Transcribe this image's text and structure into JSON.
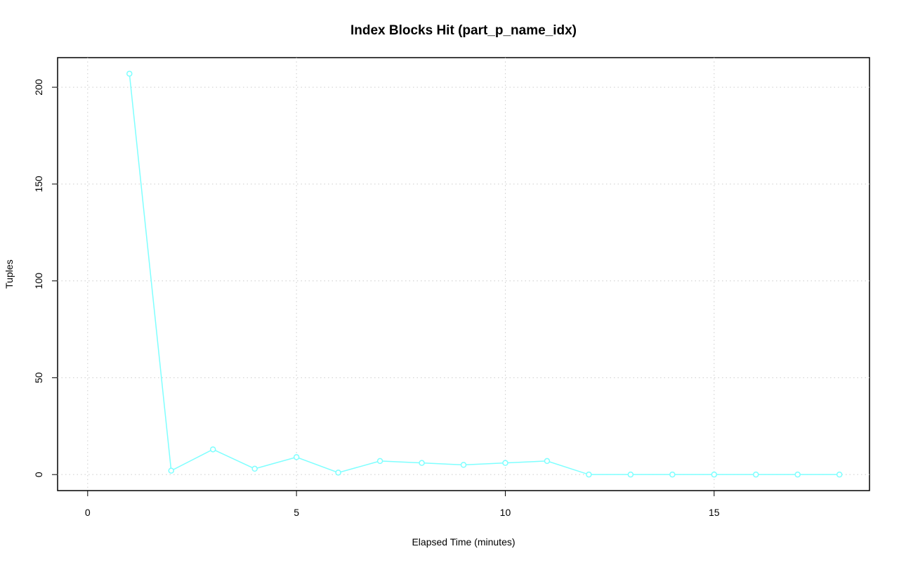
{
  "chart_data": {
    "type": "line",
    "title": "Index Blocks Hit (part_p_name_idx)",
    "x_label": "Elapsed Time (minutes)",
    "y_label": "Tuples",
    "x": [
      1,
      2,
      3,
      4,
      5,
      6,
      7,
      8,
      9,
      10,
      11,
      12,
      13,
      14,
      15,
      16,
      17,
      18
    ],
    "series": [
      {
        "color": "#7fffff",
        "values": [
          207,
          2,
          13,
          3,
          9,
          1,
          7,
          6,
          5,
          6,
          7,
          0,
          0,
          0,
          0,
          0,
          0,
          0
        ]
      }
    ],
    "xlim": [
      -0.72,
      18.72
    ],
    "ylim": [
      -8.28,
      215.28
    ],
    "xticks": [
      0,
      5,
      10,
      15
    ],
    "yticks": [
      0,
      50,
      100,
      150,
      200
    ],
    "grid": true
  }
}
